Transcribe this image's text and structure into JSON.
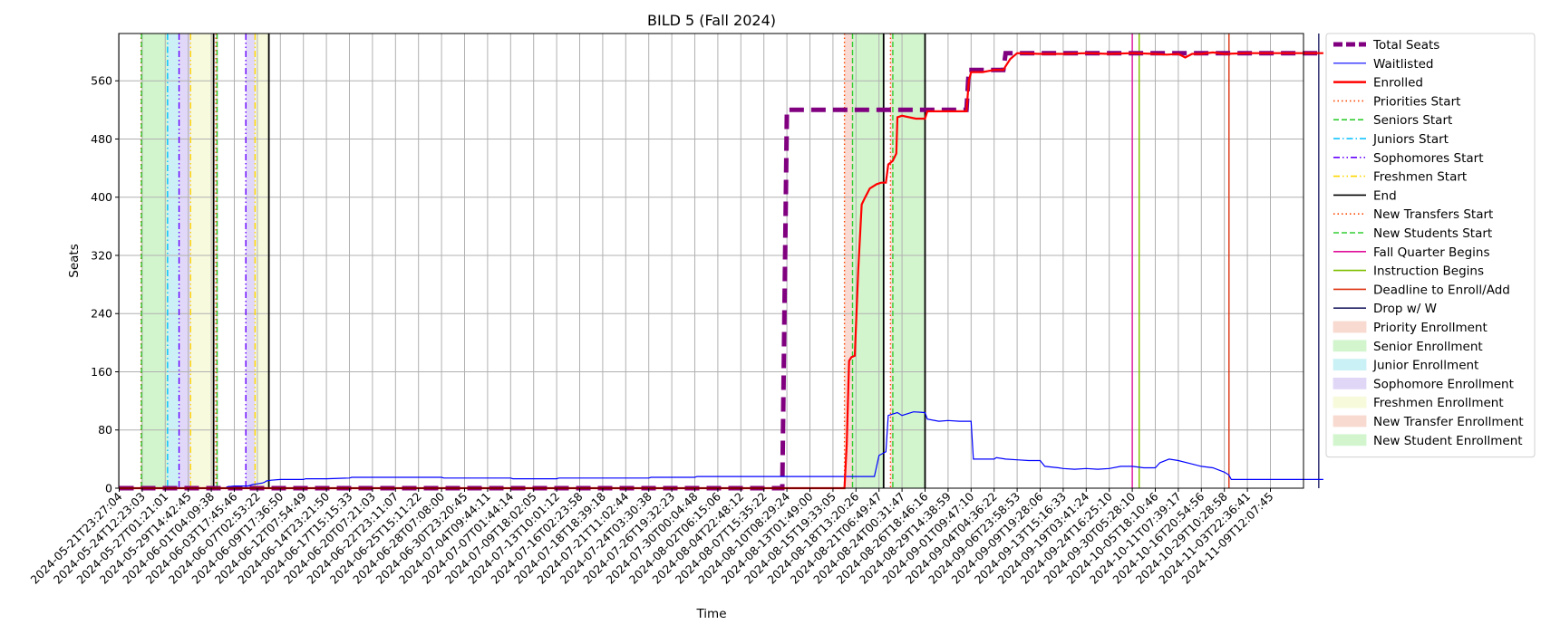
{
  "chart_data": {
    "type": "line",
    "title": "BILD 5 (Fall 2024)",
    "xlabel": "Time",
    "ylabel": "Seats",
    "ylim": [
      0,
      625
    ],
    "yticks": [
      0,
      80,
      160,
      240,
      320,
      400,
      480,
      560
    ],
    "grid": true,
    "legend_position": "outside-right",
    "x_tick_labels": [
      "2024-05-21T23:27:04",
      "2024-05-24T12:23:03",
      "2024-05-27T01:21:01",
      "2024-05-29T14:42:45",
      "2024-06-01T04:09:38",
      "2024-06-03T17:45:46",
      "2024-06-07T02:53:22",
      "2024-06-09T17:36:50",
      "2024-06-12T07:54:49",
      "2024-06-14T23:21:50",
      "2024-06-17T15:15:33",
      "2024-06-20T07:21:03",
      "2024-06-22T23:11:07",
      "2024-06-25T15:11:22",
      "2024-06-28T07:08:00",
      "2024-06-30T23:20:45",
      "2024-07-04T09:44:11",
      "2024-07-07T01:44:14",
      "2024-07-09T18:02:05",
      "2024-07-13T10:01:12",
      "2024-07-16T02:23:58",
      "2024-07-18T18:39:18",
      "2024-07-21T11:02:44",
      "2024-07-24T03:30:38",
      "2024-07-26T19:32:23",
      "2024-07-30T00:04:48",
      "2024-08-02T06:15:06",
      "2024-08-04T22:48:12",
      "2024-08-07T15:35:22",
      "2024-08-10T08:29:24",
      "2024-08-13T01:49:00",
      "2024-08-15T19:33:05",
      "2024-08-18T13:20:26",
      "2024-08-21T06:49:47",
      "2024-08-24T00:31:47",
      "2024-08-26T18:46:16",
      "2024-08-29T14:38:59",
      "2024-09-01T09:47:10",
      "2024-09-04T04:36:22",
      "2024-09-06T23:58:53",
      "2024-09-09T19:28:06",
      "2024-09-13T15:16:33",
      "2024-09-19T03:41:24",
      "2024-09-24T16:25:10",
      "2024-09-30T05:28:10",
      "2024-10-05T18:10:46",
      "2024-10-11T07:39:17",
      "2024-10-16T20:54:56",
      "2024-10-29T10:28:58",
      "2024-11-03T22:36:41",
      "2024-11-09T12:07:45"
    ],
    "x_range_index": [
      0,
      52.3
    ],
    "series": [
      {
        "name": "Total Seats",
        "color": "#800080",
        "style": "dashed",
        "points": [
          [
            0,
            0
          ],
          [
            28.8,
            0
          ],
          [
            29.0,
            520
          ],
          [
            36.8,
            520
          ],
          [
            36.9,
            575
          ],
          [
            38.4,
            575
          ],
          [
            38.5,
            598
          ],
          [
            52.3,
            598
          ]
        ]
      },
      {
        "name": "Waitlisted",
        "color": "#0000ff",
        "style": "solid",
        "points": [
          [
            0,
            0
          ],
          [
            4.6,
            0
          ],
          [
            4.7,
            2
          ],
          [
            5.0,
            3
          ],
          [
            5.6,
            3
          ],
          [
            5.8,
            5
          ],
          [
            6.0,
            6
          ],
          [
            6.2,
            7
          ],
          [
            6.3,
            8
          ],
          [
            6.4,
            10
          ],
          [
            6.6,
            11
          ],
          [
            7.0,
            12
          ],
          [
            8.0,
            12
          ],
          [
            8.1,
            13
          ],
          [
            9.0,
            13
          ],
          [
            10.0,
            14
          ],
          [
            10.1,
            15
          ],
          [
            14.0,
            15
          ],
          [
            14.1,
            14
          ],
          [
            17.0,
            14
          ],
          [
            17.1,
            13
          ],
          [
            19.0,
            13
          ],
          [
            19.1,
            14
          ],
          [
            23.0,
            14
          ],
          [
            23.1,
            15
          ],
          [
            25.0,
            15
          ],
          [
            25.1,
            16
          ],
          [
            32.8,
            16
          ],
          [
            33.0,
            45
          ],
          [
            33.3,
            50
          ],
          [
            33.4,
            100
          ],
          [
            33.8,
            104
          ],
          [
            34.0,
            100
          ],
          [
            34.5,
            105
          ],
          [
            35.0,
            104
          ],
          [
            35.1,
            95
          ],
          [
            35.6,
            92
          ],
          [
            36.0,
            93
          ],
          [
            36.5,
            92
          ],
          [
            37.0,
            92
          ],
          [
            37.1,
            40
          ],
          [
            38.0,
            40
          ],
          [
            38.1,
            42
          ],
          [
            38.5,
            40
          ],
          [
            39.0,
            39
          ],
          [
            39.5,
            38
          ],
          [
            40.0,
            38
          ],
          [
            40.2,
            30
          ],
          [
            40.8,
            28
          ],
          [
            41.0,
            27
          ],
          [
            41.5,
            26
          ],
          [
            42.0,
            27
          ],
          [
            42.5,
            26
          ],
          [
            43.0,
            27
          ],
          [
            43.5,
            30
          ],
          [
            44.0,
            30
          ],
          [
            44.5,
            28
          ],
          [
            45.0,
            28
          ],
          [
            45.2,
            35
          ],
          [
            45.6,
            40
          ],
          [
            46.0,
            38
          ],
          [
            46.5,
            34
          ],
          [
            47.0,
            30
          ],
          [
            47.5,
            28
          ],
          [
            48.0,
            22
          ],
          [
            48.2,
            18
          ],
          [
            48.3,
            12
          ],
          [
            52.3,
            12
          ]
        ]
      },
      {
        "name": "Enrolled",
        "color": "#ff0000",
        "style": "solid",
        "points": [
          [
            0,
            0
          ],
          [
            31.5,
            0
          ],
          [
            31.6,
            60
          ],
          [
            31.7,
            175
          ],
          [
            31.8,
            180
          ],
          [
            31.95,
            182
          ],
          [
            32.1,
            300
          ],
          [
            32.25,
            390
          ],
          [
            32.4,
            400
          ],
          [
            32.6,
            412
          ],
          [
            32.9,
            418
          ],
          [
            33.1,
            420
          ],
          [
            33.3,
            420
          ],
          [
            33.4,
            445
          ],
          [
            33.6,
            450
          ],
          [
            33.75,
            460
          ],
          [
            33.8,
            510
          ],
          [
            34.0,
            512
          ],
          [
            34.6,
            508
          ],
          [
            35.0,
            508
          ],
          [
            35.1,
            518
          ],
          [
            36.8,
            518
          ],
          [
            36.9,
            560
          ],
          [
            37.0,
            572
          ],
          [
            37.5,
            572
          ],
          [
            38.0,
            575
          ],
          [
            38.4,
            575
          ],
          [
            38.5,
            580
          ],
          [
            38.7,
            590
          ],
          [
            39.0,
            598
          ],
          [
            40.0,
            597
          ],
          [
            41.0,
            597
          ],
          [
            42.0,
            598
          ],
          [
            43.0,
            597
          ],
          [
            44.0,
            598
          ],
          [
            45.0,
            597
          ],
          [
            45.5,
            596
          ],
          [
            46.0,
            597
          ],
          [
            46.3,
            592
          ],
          [
            46.6,
            597
          ],
          [
            47.0,
            597
          ],
          [
            47.5,
            599
          ],
          [
            48.0,
            597
          ],
          [
            49.0,
            598
          ],
          [
            52.3,
            598
          ]
        ]
      }
    ],
    "vertical_markers": [
      {
        "name": "Priorities Start",
        "color": "#ff4500",
        "style": "dotted",
        "x": [
          0.95,
          31.5,
          33.5
        ]
      },
      {
        "name": "Seniors Start",
        "color": "#32cd32",
        "style": "dashed",
        "x": [
          0.97,
          31.85,
          33.6
        ]
      },
      {
        "name": "Juniors Start",
        "color": "#00bfff",
        "style": "dashdot",
        "x": [
          2.1
        ]
      },
      {
        "name": "Sophomores Start",
        "color": "#6600ff",
        "style": "dashdotdot",
        "x": [
          2.6,
          5.5
        ]
      },
      {
        "name": "Freshmen Start",
        "color": "#ffd700",
        "style": "dashdotdot",
        "x": [
          3.1,
          5.9
        ]
      },
      {
        "name": "End",
        "color": "#000000",
        "style": "solid",
        "x": [
          4.1,
          6.5,
          33.2,
          35.0
        ]
      },
      {
        "name": "New Transfers Start",
        "color": "#ff4500",
        "style": "dotted",
        "x": [
          4.2
        ]
      },
      {
        "name": "New Students Start",
        "color": "#32cd32",
        "style": "dashed",
        "x": [
          4.25
        ]
      },
      {
        "name": "Fall Quarter Begins",
        "color": "#e0109a",
        "style": "solid",
        "x": [
          44.0
        ]
      },
      {
        "name": "Instruction Begins",
        "color": "#7fbf00",
        "style": "solid",
        "x": [
          44.3
        ]
      },
      {
        "name": "Deadline to Enroll/Add",
        "color": "#dd3311",
        "style": "solid",
        "x": [
          48.2
        ]
      },
      {
        "name": "Drop w/ W",
        "color": "#222266",
        "style": "solid",
        "x": [
          52.1
        ]
      }
    ],
    "shaded_regions": [
      {
        "name": "Priority Enrollment",
        "color": "#f4c2b4",
        "ranges": [
          [
            0.95,
            0.97
          ],
          [
            31.5,
            31.85
          ],
          [
            33.5,
            33.6
          ]
        ]
      },
      {
        "name": "Senior Enrollment",
        "color": "#b5efae",
        "ranges": [
          [
            0.97,
            2.1
          ],
          [
            31.85,
            33.2
          ]
        ]
      },
      {
        "name": "Junior Enrollment",
        "color": "#a8e8f0",
        "ranges": [
          [
            2.1,
            2.6
          ]
        ]
      },
      {
        "name": "Sophomore Enrollment",
        "color": "#cdbdf3",
        "ranges": [
          [
            2.6,
            3.1
          ],
          [
            5.5,
            5.9
          ]
        ]
      },
      {
        "name": "Freshmen Enrollment",
        "color": "#f4f7c6",
        "ranges": [
          [
            3.1,
            4.1
          ],
          [
            5.9,
            6.5
          ]
        ]
      },
      {
        "name": "New Transfer Enrollment",
        "color": "#f4c2b4",
        "ranges": [
          [
            4.2,
            4.25
          ]
        ]
      },
      {
        "name": "New Student Enrollment",
        "color": "#b5efae",
        "ranges": [
          [
            4.25,
            4.3
          ],
          [
            33.6,
            35.0
          ]
        ]
      }
    ]
  }
}
